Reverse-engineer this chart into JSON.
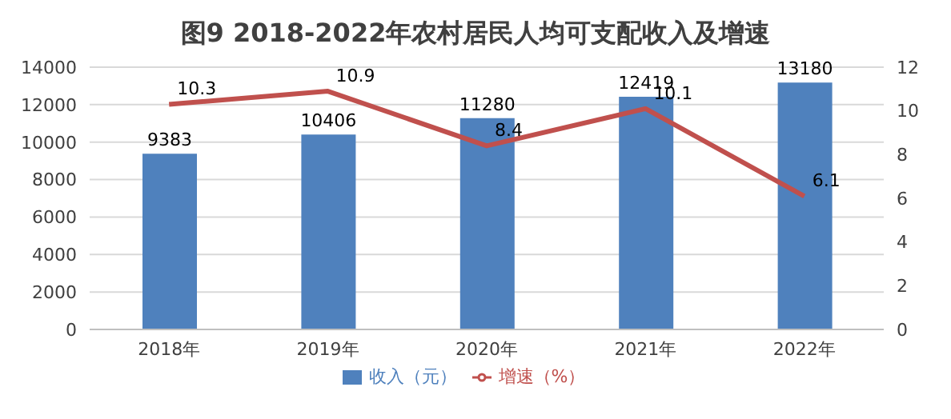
{
  "chart_data": {
    "type": "bar",
    "title": "图9  2018-2022年农村居民人均可支配收入及增速",
    "categories": [
      "2018年",
      "2019年",
      "2020年",
      "2021年",
      "2022年"
    ],
    "series": [
      {
        "name": "收入（元）",
        "color": "#4f81bd",
        "values": [
          9383,
          10406,
          11280,
          12419,
          13180
        ]
      },
      {
        "name": "增速（%）",
        "type": "line",
        "axis": "y2",
        "color": "#c0504d",
        "values": [
          10.3,
          10.9,
          8.4,
          10.1,
          6.1
        ]
      }
    ],
    "ylim": [
      0,
      14000
    ],
    "yticks": [
      0,
      2000,
      4000,
      6000,
      8000,
      10000,
      12000,
      14000
    ],
    "y2lim": [
      0,
      12
    ],
    "y2ticks": [
      0,
      2,
      4,
      6,
      8,
      10,
      12
    ],
    "grid": "y",
    "legend": "bottom",
    "data_labels": true,
    "marker": "none"
  }
}
